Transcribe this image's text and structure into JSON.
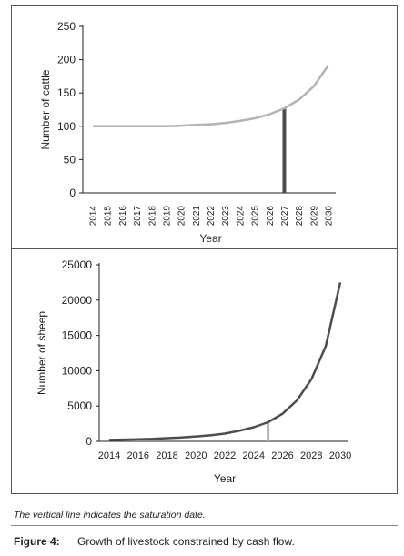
{
  "chart_data": [
    {
      "type": "line",
      "title": "",
      "xlabel": "Year",
      "ylabel": "Number of cattle",
      "ylim": [
        0,
        250
      ],
      "yticks": [
        "250",
        "200",
        "150",
        "100",
        "50",
        "0"
      ],
      "xticks": [
        "2014",
        "2015",
        "2016",
        "2017",
        "2018",
        "2019",
        "2020",
        "2021",
        "2022",
        "2023",
        "2024",
        "2025",
        "2026",
        "2027",
        "2028",
        "2029",
        "2030"
      ],
      "x": [
        2014,
        2015,
        2016,
        2017,
        2018,
        2019,
        2020,
        2021,
        2022,
        2023,
        2024,
        2025,
        2026,
        2027,
        2028,
        2029,
        2030
      ],
      "series": [
        {
          "values": [
            100,
            100,
            100,
            100,
            100,
            100,
            101,
            102,
            103,
            105,
            108,
            112,
            118,
            127,
            140,
            160,
            192
          ]
        }
      ],
      "saturation_year": 2027,
      "saturation_value": 127,
      "grid": false,
      "line_color": "#b3b3b3",
      "marker_color": "#4d4d4d"
    },
    {
      "type": "line",
      "title": "",
      "xlabel": "Year",
      "ylabel": "Number of sheep",
      "ylim": [
        0,
        25000
      ],
      "yticks": [
        "25000",
        "20000",
        "15000",
        "10000",
        "5000",
        "0"
      ],
      "xticks": [
        "2014",
        "2016",
        "2018",
        "2020",
        "2022",
        "2024",
        "2026",
        "2028",
        "2030"
      ],
      "x": [
        2014,
        2015,
        2016,
        2017,
        2018,
        2019,
        2020,
        2021,
        2022,
        2023,
        2024,
        2025,
        2026,
        2027,
        2028,
        2029,
        2030
      ],
      "series": [
        {
          "values": [
            200,
            250,
            300,
            350,
            450,
            550,
            700,
            850,
            1100,
            1500,
            2000,
            2700,
            3900,
            5800,
            8800,
            13500,
            22500
          ]
        }
      ],
      "saturation_year": 2025,
      "saturation_value": 2700,
      "grid": false,
      "line_color": "#4d4d4d",
      "marker_color": "#b3b3b3"
    }
  ],
  "note": "The vertical line indicates the saturation date.",
  "caption": {
    "label": "Figure 4:",
    "text": "Growth of livestock constrained by cash flow."
  }
}
